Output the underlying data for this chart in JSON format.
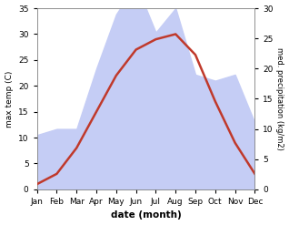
{
  "months": [
    "Jan",
    "Feb",
    "Mar",
    "Apr",
    "May",
    "Jun",
    "Jul",
    "Aug",
    "Sep",
    "Oct",
    "Nov",
    "Dec"
  ],
  "temp": [
    1,
    3,
    8,
    15,
    22,
    27,
    29,
    30,
    26,
    17,
    9,
    3
  ],
  "precip": [
    9,
    10,
    10,
    20,
    29,
    34,
    26,
    30,
    19,
    18,
    19,
    11
  ],
  "temp_color": "#c0392b",
  "precip_fill_color": "#c5cdf5",
  "ylabel_left": "max temp (C)",
  "ylabel_right": "med. precipitation (kg/m2)",
  "xlabel": "date (month)",
  "ylim_left": [
    0,
    35
  ],
  "ylim_right": [
    0,
    30
  ],
  "yticks_left": [
    0,
    5,
    10,
    15,
    20,
    25,
    30,
    35
  ],
  "yticks_right": [
    0,
    5,
    10,
    15,
    20,
    25,
    30
  ],
  "bg_color": "#f0f0f0",
  "line_width": 1.8
}
